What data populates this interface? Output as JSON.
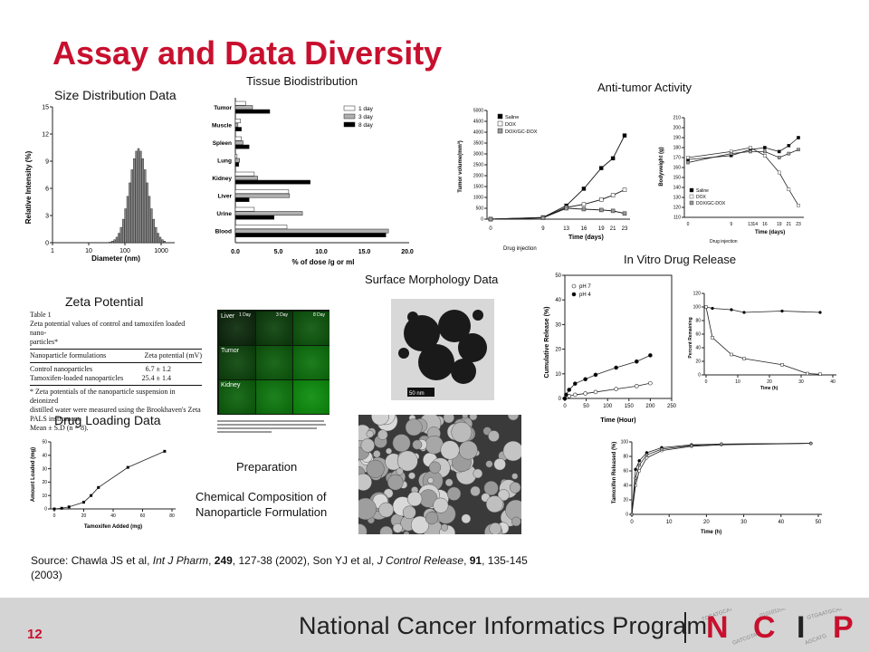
{
  "slide": {
    "title": "Assay and Data Diversity",
    "page_number": "12"
  },
  "labels": {
    "size_distribution": "Size Distribution Data",
    "tissue_biodistribution": "Tissue Biodistribution",
    "anti_tumor": "Anti-tumor Activity",
    "in_vitro": "In Vitro Drug Release",
    "zeta": "Zeta Potential",
    "surface": "Surface Morphology Data",
    "drug_loading": "Drug Loading Data",
    "preparation": "Preparation",
    "chem_line1": "Chemical Composition of",
    "chem_line2": "Nanoparticle Formulation"
  },
  "size_chart": {
    "ylabel": "Relative Intensity (%)",
    "xlabel": "Diameter (nm)",
    "yticks": [
      "0",
      "3",
      "6",
      "9",
      "12",
      "15"
    ],
    "xticks": [
      "1",
      "10",
      "100",
      "1000"
    ]
  },
  "tissue_chart": {
    "categories": [
      "Tumor",
      "Muscle",
      "Spleen",
      "Lung",
      "Kidney",
      "Liver",
      "Urine",
      "Blood"
    ],
    "legend": [
      "1 day",
      "3 day",
      "8 day"
    ],
    "xticks": [
      "0.0",
      "5.0",
      "10.0",
      "15.0",
      "20.0"
    ],
    "xlabel": "% of dose /g or ml"
  },
  "antitumor_left": {
    "ylabel": "Tumor volume(mm³)",
    "yticks": [
      "0",
      "500",
      "1000",
      "1500",
      "2000",
      "2500",
      "3000",
      "3500",
      "4000",
      "4500",
      "5000"
    ],
    "xticks": [
      "0",
      "9",
      "13",
      "16",
      "19",
      "21",
      "23"
    ],
    "legend": [
      "Saline",
      "DOX",
      "DOX/GC-DOX"
    ],
    "xlabel": "Time (days)",
    "note": "Drug injection"
  },
  "antitumor_right": {
    "ylabel": "Bodyweight (g)",
    "yticks": [
      "110",
      "120",
      "130",
      "140",
      "150",
      "160",
      "170",
      "180",
      "190",
      "200",
      "210"
    ],
    "xticks": [
      "0",
      "9",
      "13",
      "14",
      "16",
      "19",
      "21",
      "23"
    ],
    "legend": [
      "Saline",
      "DOX",
      "DOX/GC-DOX"
    ],
    "xlabel": "Time (days)",
    "note": "Drug injection"
  },
  "zeta_table": {
    "caption_line1": "Table 1",
    "caption_line2": "Zeta potential values of control and tamoxifen loaded nano-",
    "caption_line3": "particles*",
    "col1": "Nanoparticle formulations",
    "col2": "Zeta potential (mV)",
    "row1_name": "Control nanoparticles",
    "row1_val": "6.7 ± 1.2",
    "row2_name": "Tamoxifen-loaded nanoparticles",
    "row2_val": "25.4 ± 1.4",
    "foot1": "* Zeta potentials of the nanoparticle suspension in deionized",
    "foot2": "distilled water were measured using the Brookhaven's Zeta",
    "foot3": "PALS instrument.",
    "foot4": "Mean ± S.D (n = 8)."
  },
  "micro_image": {
    "rows": [
      "Liver",
      "Tumor",
      "Kidney"
    ],
    "cols": [
      "1 Day",
      "3 Day",
      "8 Day"
    ]
  },
  "tem_image": {
    "scale": "50 nm"
  },
  "in_vitro_left": {
    "ylabel": "Cumulative Release (%)",
    "xlabel": "Time (Hour)",
    "yticks": [
      "0",
      "10",
      "20",
      "30",
      "40",
      "50"
    ],
    "xticks": [
      "0",
      "50",
      "100",
      "150",
      "200",
      "250"
    ],
    "legend": [
      "pH 7",
      "pH 4"
    ]
  },
  "in_vitro_right": {
    "ylabel": "Percent Remaining",
    "xlabel": "Time (h)",
    "yticks": [
      "0",
      "20",
      "40",
      "60",
      "80",
      "100",
      "120"
    ],
    "xticks": [
      "0",
      "10",
      "20",
      "30",
      "40"
    ]
  },
  "tamoxifen_release": {
    "ylabel": "Tamoxifen Released (%)",
    "xlabel": "Time (h)",
    "yticks": [
      "0",
      "20",
      "40",
      "60",
      "80",
      "100"
    ],
    "xticks": [
      "0",
      "10",
      "20",
      "30",
      "40",
      "50"
    ]
  },
  "drug_loading_chart": {
    "ylabel": "Amount Loaded (mg)",
    "xlabel": "Tamoxifen Added (mg)",
    "yticks": [
      "0",
      "10",
      "20",
      "30",
      "40",
      "50"
    ],
    "xticks": [
      "0",
      "20",
      "40",
      "60",
      "80"
    ]
  },
  "source": {
    "prefix": "Source:  Chawla JS et al, ",
    "j1": "Int J Pharm",
    "sep1": ", ",
    "v1": "249",
    "p1": ", 127-38 (2002), Son YJ et al, ",
    "j2": "J Control Release",
    "sep2": ", ",
    "v2": "91",
    "p2": ", 135-145",
    "line2": "(2003)"
  },
  "footer": {
    "program": "National Cancer Informatics Program",
    "ncip": [
      "N",
      "C",
      "I",
      "P"
    ]
  },
  "colors": {
    "accent": "#c8102e",
    "footer_bg": "#d4d4d4"
  }
}
